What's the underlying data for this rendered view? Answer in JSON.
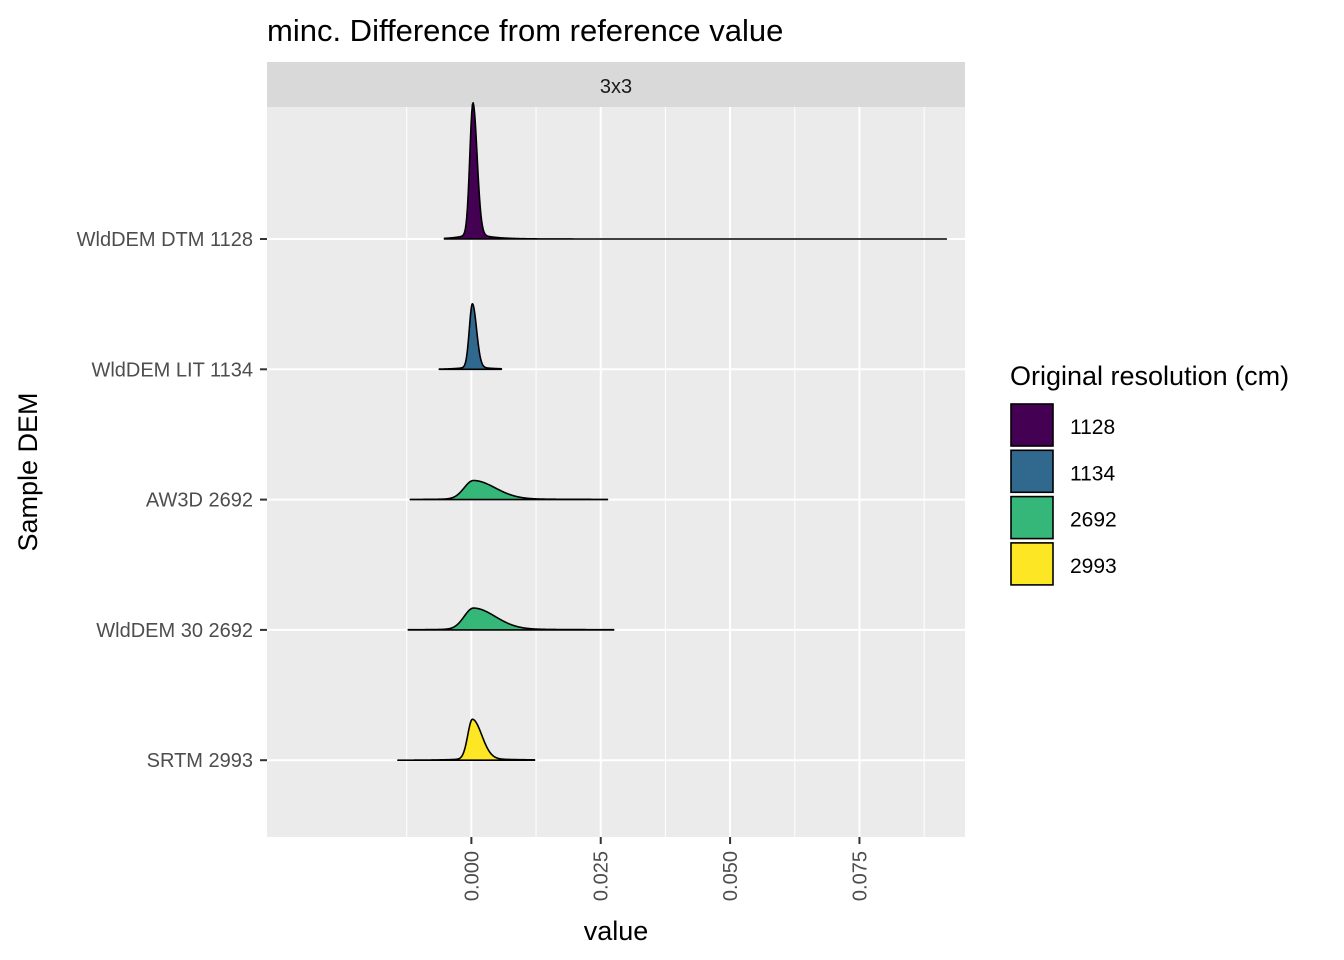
{
  "chart_data": {
    "type": "ridgeline",
    "title": "minc. Difference from reference value",
    "facet_label": "3x3",
    "xlabel": "value",
    "ylabel": "Sample DEM",
    "xlim": [
      -0.0395,
      0.0954
    ],
    "x_ticks": [
      0.0,
      0.025,
      0.05,
      0.075
    ],
    "x_tick_labels": [
      "0.000",
      "0.025",
      "0.050",
      "0.075"
    ],
    "x_minor_ticks": [
      -0.0125,
      0.0125,
      0.0375,
      0.0625,
      0.0875
    ],
    "y_categories": [
      "WldDEM DTM 1128",
      "WldDEM LIT 1134",
      "AW3D 2692",
      "WldDEM 30 2692",
      "SRTM 2993"
    ],
    "legend": {
      "title": "Original resolution (cm)",
      "position": "right",
      "entries": [
        {
          "label": "1128",
          "color": "#440154"
        },
        {
          "label": "1134",
          "color": "#31688E"
        },
        {
          "label": "2692",
          "color": "#35B779"
        },
        {
          "label": "2993",
          "color": "#FDE725"
        }
      ]
    },
    "series": [
      {
        "name": "WldDEM DTM 1128",
        "resolution": "1128",
        "color": "#440154",
        "x_min": -0.0052,
        "x_max": 0.0918,
        "mode": 0.0003,
        "peak": 1.0,
        "sigma_left": 0.0006,
        "sigma_right": 0.0008
      },
      {
        "name": "WldDEM LIT 1134",
        "resolution": "1134",
        "color": "#31688E",
        "x_min": -0.0062,
        "x_max": 0.0058,
        "mode": 0.0002,
        "peak": 0.48,
        "sigma_left": 0.0006,
        "sigma_right": 0.0008
      },
      {
        "name": "AW3D 2692",
        "resolution": "2692",
        "color": "#35B779",
        "x_min": -0.0118,
        "x_max": 0.0263,
        "mode": 0.0004,
        "peak": 0.14,
        "sigma_left": 0.0018,
        "sigma_right": 0.0042
      },
      {
        "name": "WldDEM 30 2692",
        "resolution": "2692",
        "color": "#35B779",
        "x_min": -0.0122,
        "x_max": 0.0275,
        "mode": 0.0004,
        "peak": 0.16,
        "sigma_left": 0.0018,
        "sigma_right": 0.0042
      },
      {
        "name": "SRTM 2993",
        "resolution": "2993",
        "color": "#FDE725",
        "x_min": -0.0142,
        "x_max": 0.0122,
        "mode": 0.0002,
        "peak": 0.3,
        "sigma_left": 0.0009,
        "sigma_right": 0.0018
      }
    ]
  }
}
